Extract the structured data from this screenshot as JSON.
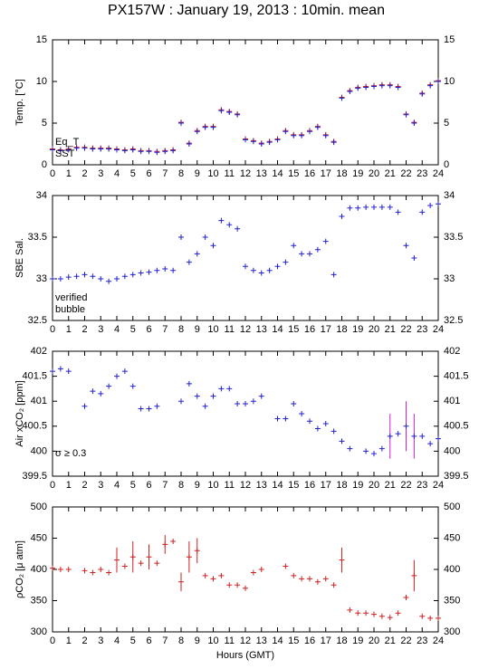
{
  "title": "PX157W : January 19, 2013 : 10min. mean",
  "chart_data": [
    {
      "type": "scatter",
      "ylabel": "Temp. [°C]",
      "x": [
        0,
        0.5,
        1,
        1.5,
        2,
        2.5,
        3,
        3.5,
        4,
        4.5,
        5,
        5.5,
        6,
        6.5,
        7,
        7.5,
        8,
        8.5,
        9,
        9.5,
        10,
        10.5,
        11,
        11.5,
        12,
        12.5,
        13,
        13.5,
        14,
        14.5,
        15,
        15.5,
        16,
        16.5,
        17,
        17.5,
        18,
        18.5,
        19,
        19.5,
        20,
        20.5,
        21,
        21.5,
        22,
        22.5,
        23,
        23.5,
        24
      ],
      "xlim": [
        0,
        24
      ],
      "xticks": [
        0,
        1,
        2,
        3,
        4,
        5,
        6,
        7,
        8,
        9,
        10,
        11,
        12,
        13,
        14,
        15,
        16,
        17,
        18,
        19,
        20,
        21,
        22,
        23,
        24
      ],
      "ylim": [
        0,
        15
      ],
      "yticks": [
        0,
        5,
        10,
        15
      ],
      "series": [
        {
          "name": "Eq_T",
          "color": "#d02020",
          "values": [
            1.9,
            1.8,
            1.9,
            2.1,
            2.1,
            2.0,
            2.0,
            2.0,
            1.9,
            1.8,
            1.9,
            1.7,
            1.7,
            1.6,
            1.7,
            1.8,
            5.1,
            2.6,
            4.1,
            4.6,
            4.6,
            6.6,
            6.4,
            6.1,
            3.1,
            2.9,
            2.6,
            2.8,
            3.1,
            4.1,
            3.6,
            3.6,
            4.1,
            4.6,
            3.6,
            2.8,
            8.1,
            8.9,
            9.3,
            9.4,
            9.5,
            9.6,
            9.6,
            9.4,
            6.1,
            5.1,
            8.6,
            9.6,
            10.1
          ]
        },
        {
          "name": "SST",
          "color": "#2020d0",
          "values": [
            1.8,
            1.7,
            1.8,
            2.0,
            2.0,
            1.9,
            1.9,
            1.9,
            1.8,
            1.7,
            1.8,
            1.6,
            1.6,
            1.5,
            1.6,
            1.7,
            5.0,
            2.5,
            4.0,
            4.5,
            4.5,
            6.5,
            6.3,
            6.0,
            3.0,
            2.8,
            2.5,
            2.7,
            3.0,
            4.0,
            3.5,
            3.5,
            4.0,
            4.5,
            3.5,
            2.7,
            8.0,
            8.8,
            9.2,
            9.3,
            9.4,
            9.5,
            9.5,
            9.3,
            6.0,
            5.0,
            8.5,
            9.5,
            10.0
          ]
        }
      ]
    },
    {
      "type": "scatter",
      "ylabel": "SBE Sal.",
      "x": [
        0,
        0.5,
        1,
        1.5,
        2,
        2.5,
        3,
        3.5,
        4,
        4.5,
        5,
        5.5,
        6,
        6.5,
        7,
        7.5,
        8,
        8.5,
        9,
        9.5,
        10,
        10.5,
        11,
        11.5,
        12,
        12.5,
        13,
        13.5,
        14,
        14.5,
        15,
        15.5,
        16,
        16.5,
        17,
        17.5,
        18,
        18.5,
        19,
        19.5,
        20,
        20.5,
        21,
        21.5,
        22,
        22.5,
        23,
        23.5,
        24
      ],
      "xlim": [
        0,
        24
      ],
      "xticks": [
        0,
        1,
        2,
        3,
        4,
        5,
        6,
        7,
        8,
        9,
        10,
        11,
        12,
        13,
        14,
        15,
        16,
        17,
        18,
        19,
        20,
        21,
        22,
        23,
        24
      ],
      "ylim": [
        32.5,
        34
      ],
      "yticks": [
        32.5,
        33,
        33.5,
        34
      ],
      "series": [
        {
          "name": "verified",
          "color": "#2020d0",
          "values": [
            33.0,
            33.0,
            33.02,
            33.03,
            33.05,
            33.03,
            33.0,
            32.97,
            33.0,
            33.03,
            33.05,
            33.07,
            33.08,
            33.1,
            33.12,
            33.1,
            33.5,
            33.2,
            33.3,
            33.5,
            33.4,
            33.7,
            33.65,
            33.6,
            33.15,
            33.1,
            33.07,
            33.1,
            33.15,
            33.2,
            33.4,
            33.3,
            33.3,
            33.35,
            33.45,
            33.05,
            33.75,
            33.85,
            33.85,
            33.86,
            33.86,
            33.86,
            33.86,
            33.8,
            33.4,
            33.25,
            33.8,
            33.88,
            33.9
          ]
        },
        {
          "name": "bubble",
          "color": "#d020d0",
          "values": [
            null,
            null,
            null,
            null,
            null,
            null,
            null,
            null,
            null,
            null,
            null,
            null,
            null,
            null,
            null,
            null,
            null,
            null,
            null,
            null,
            null,
            null,
            null,
            null,
            null,
            null,
            null,
            null,
            null,
            null,
            null,
            null,
            null,
            null,
            null,
            null,
            null,
            null,
            null,
            null,
            null,
            null,
            null,
            null,
            null,
            null,
            null,
            null,
            null
          ]
        }
      ]
    },
    {
      "type": "scatter",
      "ylabel": "Air xCO₂ [ppm]",
      "annotation": "σ ≥ 0.3",
      "annotation_color": "#d020d0",
      "x": [
        0,
        0.5,
        1,
        1.5,
        2,
        2.5,
        3,
        3.5,
        4,
        4.5,
        5,
        5.5,
        6,
        6.5,
        7,
        7.5,
        8,
        8.5,
        9,
        9.5,
        10,
        10.5,
        11,
        11.5,
        12,
        12.5,
        13,
        13.5,
        14,
        14.5,
        15,
        15.5,
        16,
        16.5,
        17,
        17.5,
        18,
        18.5,
        19,
        19.5,
        20,
        20.5,
        21,
        21.5,
        22,
        22.5,
        23,
        23.5,
        24
      ],
      "xlim": [
        0,
        24
      ],
      "xticks": [
        0,
        1,
        2,
        3,
        4,
        5,
        6,
        7,
        8,
        9,
        10,
        11,
        12,
        13,
        14,
        15,
        16,
        17,
        18,
        19,
        20,
        21,
        22,
        23,
        24
      ],
      "ylim": [
        399.5,
        402
      ],
      "yticks": [
        399.5,
        400,
        400.5,
        401,
        401.5,
        402
      ],
      "series": [
        {
          "color": "#2020d0",
          "error_color": "#d020d0",
          "values": [
            401.6,
            401.65,
            401.6,
            null,
            400.9,
            401.2,
            401.15,
            401.3,
            401.5,
            401.6,
            401.3,
            400.85,
            400.85,
            400.9,
            null,
            null,
            401.0,
            401.35,
            401.1,
            400.9,
            401.1,
            401.25,
            401.25,
            400.95,
            400.95,
            401.0,
            401.1,
            null,
            400.65,
            400.65,
            400.95,
            400.75,
            400.6,
            400.45,
            400.55,
            400.4,
            400.2,
            400.05,
            null,
            400.0,
            399.95,
            400.05,
            400.3,
            400.35,
            400.5,
            400.3,
            400.3,
            400.15,
            400.25
          ],
          "errors": [
            null,
            null,
            null,
            null,
            null,
            null,
            null,
            null,
            null,
            null,
            null,
            null,
            null,
            null,
            null,
            null,
            null,
            null,
            null,
            null,
            null,
            null,
            null,
            null,
            null,
            null,
            null,
            null,
            null,
            null,
            null,
            null,
            null,
            null,
            null,
            null,
            null,
            null,
            null,
            null,
            null,
            null,
            0.45,
            null,
            0.5,
            0.45,
            null,
            null,
            null
          ]
        }
      ]
    },
    {
      "type": "scatter",
      "ylabel": "ρCO₂ [μ atm]",
      "xlabel": "Hours (GMT)",
      "x": [
        0,
        0.5,
        1,
        1.5,
        2,
        2.5,
        3,
        3.5,
        4,
        4.5,
        5,
        5.5,
        6,
        6.5,
        7,
        7.5,
        8,
        8.5,
        9,
        9.5,
        10,
        10.5,
        11,
        11.5,
        12,
        12.5,
        13,
        13.5,
        14,
        14.5,
        15,
        15.5,
        16,
        16.5,
        17,
        17.5,
        18,
        18.5,
        19,
        19.5,
        20,
        20.5,
        21,
        21.5,
        22,
        22.5,
        23,
        23.5,
        24
      ],
      "xlim": [
        0,
        24
      ],
      "xticks": [
        0,
        1,
        2,
        3,
        4,
        5,
        6,
        7,
        8,
        9,
        10,
        11,
        12,
        13,
        14,
        15,
        16,
        17,
        18,
        19,
        20,
        21,
        22,
        23,
        24
      ],
      "ylim": [
        300,
        500
      ],
      "yticks": [
        300,
        350,
        400,
        450,
        500
      ],
      "series": [
        {
          "color": "#d02020",
          "error_color": "#d02020",
          "values": [
            402,
            400,
            400,
            null,
            398,
            395,
            400,
            395,
            415,
            405,
            420,
            410,
            420,
            410,
            440,
            445,
            380,
            420,
            430,
            390,
            385,
            390,
            375,
            375,
            370,
            395,
            400,
            null,
            null,
            405,
            390,
            385,
            385,
            380,
            385,
            375,
            415,
            335,
            330,
            330,
            328,
            325,
            323,
            330,
            355,
            390,
            325,
            322,
            322
          ],
          "errors": [
            null,
            null,
            null,
            null,
            null,
            null,
            null,
            null,
            20,
            null,
            25,
            null,
            20,
            null,
            15,
            null,
            15,
            25,
            20,
            null,
            null,
            null,
            null,
            null,
            null,
            null,
            null,
            null,
            null,
            null,
            null,
            null,
            null,
            null,
            null,
            null,
            20,
            null,
            null,
            null,
            null,
            null,
            null,
            null,
            null,
            25,
            null,
            null,
            null
          ]
        }
      ]
    }
  ]
}
